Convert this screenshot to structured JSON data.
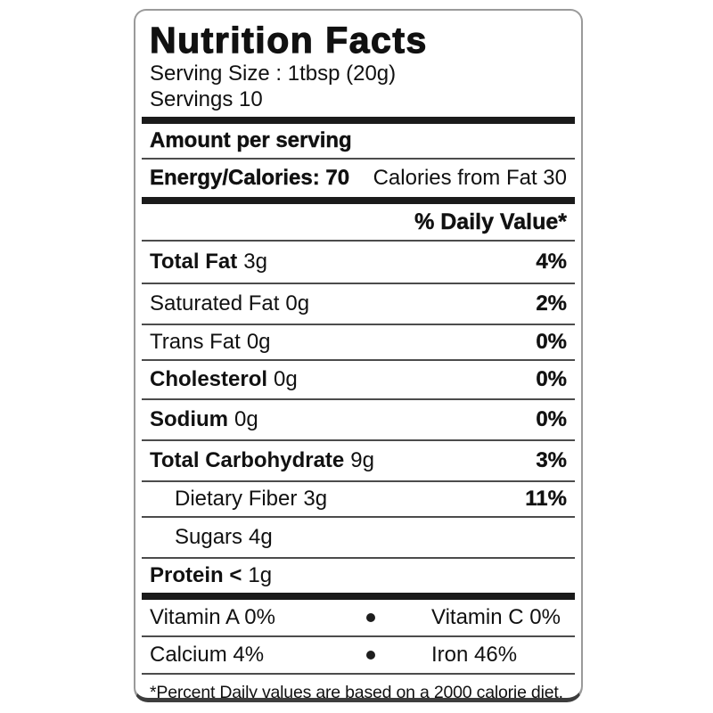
{
  "label": {
    "title": "Nutrition Facts",
    "serving_size": "Serving Size : 1tbsp (20g)",
    "servings": "Servings 10",
    "amount_per_serving": "Amount per serving",
    "energy_left": "Energy/Calories: 70",
    "energy_right": "Calories from Fat 30",
    "daily_value_header": "% Daily Value*",
    "rows": [
      {
        "name": "Total Fat",
        "amount": "3g",
        "dv": "4%"
      },
      {
        "name": "Saturated Fat",
        "amount": "0g",
        "dv": "2%"
      },
      {
        "name": "Trans Fat",
        "amount": "0g",
        "dv": "0%"
      },
      {
        "name": "Cholesterol",
        "amount": "0g",
        "dv": "0%"
      },
      {
        "name": "Sodium",
        "amount": "0g",
        "dv": "0%"
      },
      {
        "name": "Total Carbohydrate",
        "amount": "9g",
        "dv": "3%"
      },
      {
        "name": "Dietary Fiber",
        "amount": "3g",
        "dv": "11%"
      },
      {
        "name": "Sugars",
        "amount": "4g",
        "dv": ""
      },
      {
        "name": "Protein <",
        "amount": "1g",
        "dv": ""
      }
    ],
    "micronutrients": {
      "row1_left": "Vitamin A 0%",
      "row1_right": "Vitamin C 0%",
      "row2_left": "Calcium 4%",
      "row2_right": "Iron 46%"
    },
    "footnote": "*Percent Daily values are based on a 2000 calorie diet.",
    "colors": {
      "text": "#111111",
      "thick_bar": "#1b1b1b",
      "thin_rule": "#4c4c4c",
      "border": "#9a9a9a",
      "border_bottom": "#3d3d3d",
      "background": "#ffffff"
    }
  }
}
